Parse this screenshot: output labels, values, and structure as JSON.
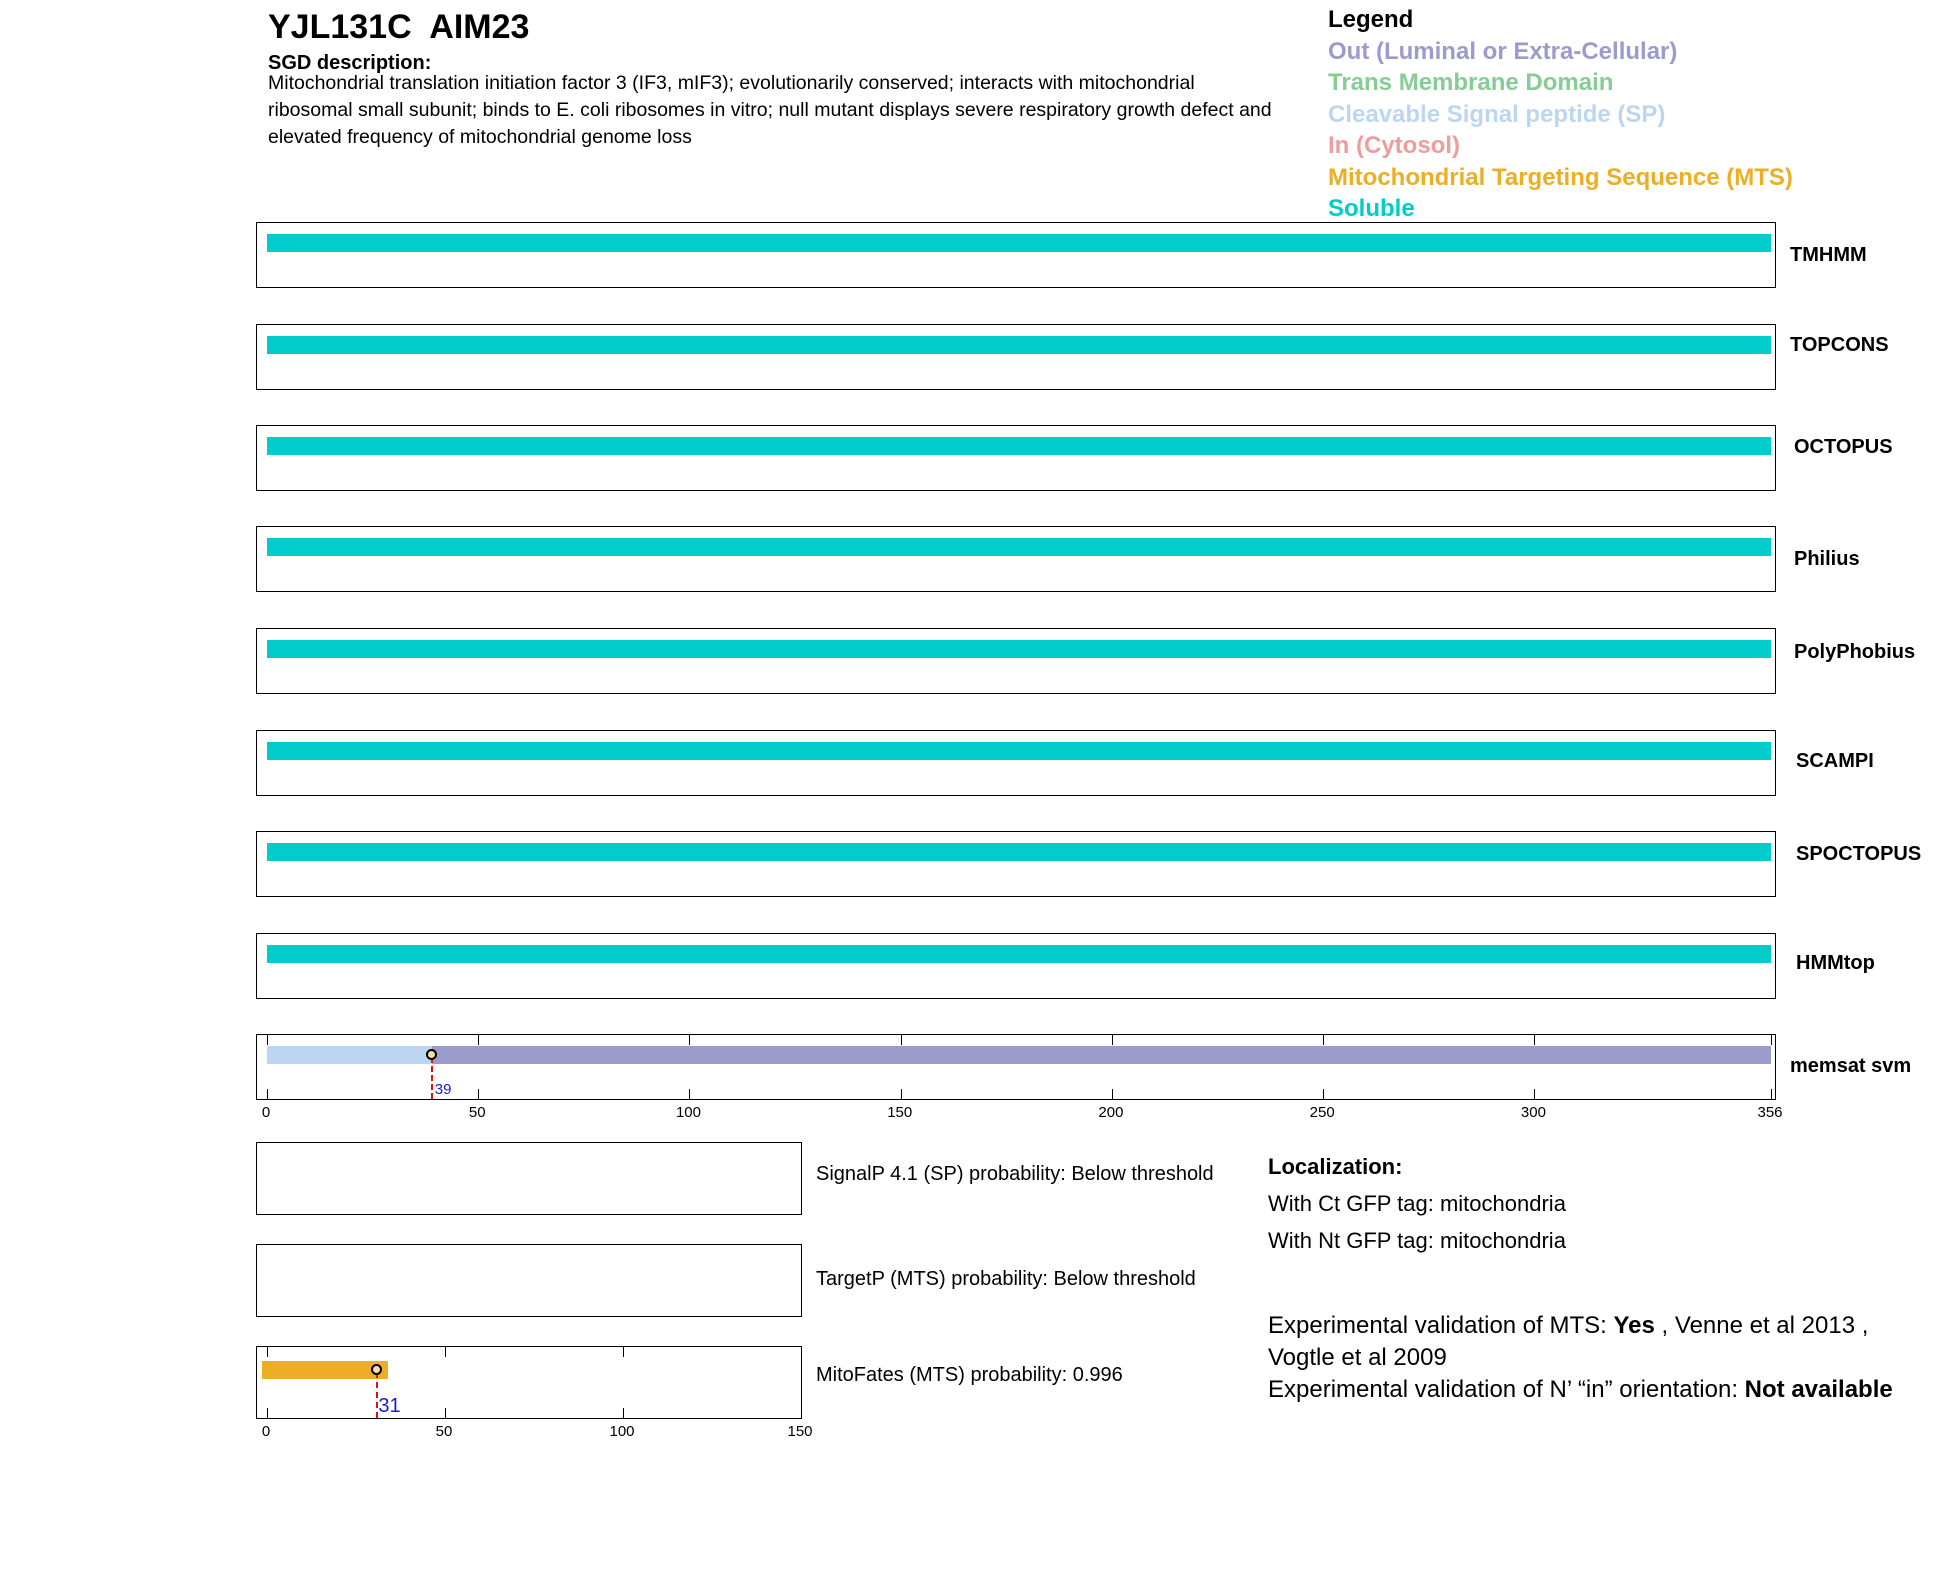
{
  "header": {
    "gene_id": "YJL131C",
    "gene_name": "AIM23",
    "sgd_label": "SGD description:",
    "sgd_description": "Mitochondrial translation initiation factor 3 (IF3, mIF3); evolutionarily conserved; interacts with mitochondrial ribosomal small subunit; binds to E. coli ribosomes in vitro; null mutant displays severe respiratory growth defect and elevated frequency of mitochondrial genome loss"
  },
  "legend": {
    "title": "Legend",
    "items": [
      {
        "label": "Out (Luminal or Extra-Cellular)",
        "color": "#9b9bcc"
      },
      {
        "label": "Trans Membrane Domain",
        "color": "#86cc96"
      },
      {
        "label": "Cleavable Signal peptide (SP)",
        "color": "#bcd6f2"
      },
      {
        "label": "In (Cytosol)",
        "color": "#ee9c9c"
      },
      {
        "label": "Mitochondrial Targeting Sequence (MTS)",
        "color": "#ecae25"
      },
      {
        "label": "Soluble",
        "color": "#00cccc"
      }
    ]
  },
  "chart_data": [
    {
      "type": "bar",
      "description_kind": "protein topology tracks (residue ranges)",
      "x_range": [
        0,
        356
      ],
      "tracks": [
        {
          "name": "TMHMM",
          "segments": [
            {
              "start": 0,
              "end": 356,
              "type": "Soluble",
              "color": "#00cccc"
            }
          ]
        },
        {
          "name": "TOPCONS",
          "segments": [
            {
              "start": 0,
              "end": 356,
              "type": "Soluble",
              "color": "#00cccc"
            }
          ]
        },
        {
          "name": "OCTOPUS",
          "segments": [
            {
              "start": 0,
              "end": 356,
              "type": "Soluble",
              "color": "#00cccc"
            }
          ]
        },
        {
          "name": "Philius",
          "segments": [
            {
              "start": 0,
              "end": 356,
              "type": "Soluble",
              "color": "#00cccc"
            }
          ]
        },
        {
          "name": "PolyPhobius",
          "segments": [
            {
              "start": 0,
              "end": 356,
              "type": "Soluble",
              "color": "#00cccc"
            }
          ]
        },
        {
          "name": "SCAMPI",
          "segments": [
            {
              "start": 0,
              "end": 356,
              "type": "Soluble",
              "color": "#00cccc"
            }
          ]
        },
        {
          "name": "SPOCTOPUS",
          "segments": [
            {
              "start": 0,
              "end": 356,
              "type": "Soluble",
              "color": "#00cccc"
            }
          ]
        },
        {
          "name": "HMMtop",
          "segments": [
            {
              "start": 0,
              "end": 356,
              "type": "Soluble",
              "color": "#00cccc"
            }
          ]
        },
        {
          "name": "memsat svm",
          "segments": [
            {
              "start": 0,
              "end": 39,
              "type": "Cleavable Signal peptide (SP)",
              "color": "#bcd6f2"
            },
            {
              "start": 39,
              "end": 356,
              "type": "Out (Luminal or Extra-Cellular)",
              "color": "#9b9bcc"
            }
          ],
          "marker": 39,
          "marker_label": "39"
        }
      ],
      "x_ticks": [
        0,
        50,
        100,
        150,
        200,
        250,
        300,
        356
      ],
      "x_tick_labels": [
        "0",
        "50",
        "100",
        "150",
        "200",
        "250",
        "300",
        "356"
      ]
    },
    {
      "type": "bar",
      "description_kind": "signal prediction panels",
      "x_range": [
        0,
        150
      ],
      "panels": [
        {
          "name": "SignalP",
          "text": "SignalP 4.1 (SP) probability: Below threshold",
          "segments": []
        },
        {
          "name": "TargetP",
          "text": "TargetP (MTS) probability: Below threshold",
          "segments": []
        },
        {
          "name": "MitoFates",
          "text": "MitoFates (MTS) probability: 0.996",
          "segments": [
            {
              "start": 0,
              "end": 34,
              "type": "Mitochondrial Targeting Sequence (MTS)",
              "color": "#ecae25"
            }
          ],
          "marker": 31,
          "marker_label": "31"
        }
      ],
      "x_ticks": [
        0,
        50,
        100,
        150
      ],
      "x_tick_labels": [
        "0",
        "50",
        "100",
        "150"
      ]
    }
  ],
  "localization": {
    "title": "Localization:",
    "ct_gfp": "With Ct GFP tag: mitochondria",
    "nt_gfp": "With Nt GFP tag: mitochondria"
  },
  "validation": {
    "mts_prefix": "Experimental validation of MTS: ",
    "mts_value": "Yes",
    "mts_refs": " , Venne et al 2013 , Vogtle et al 2009",
    "orientation_prefix": "Experimental validation of N’ “in” orientation: ",
    "orientation_value": "Not available"
  }
}
